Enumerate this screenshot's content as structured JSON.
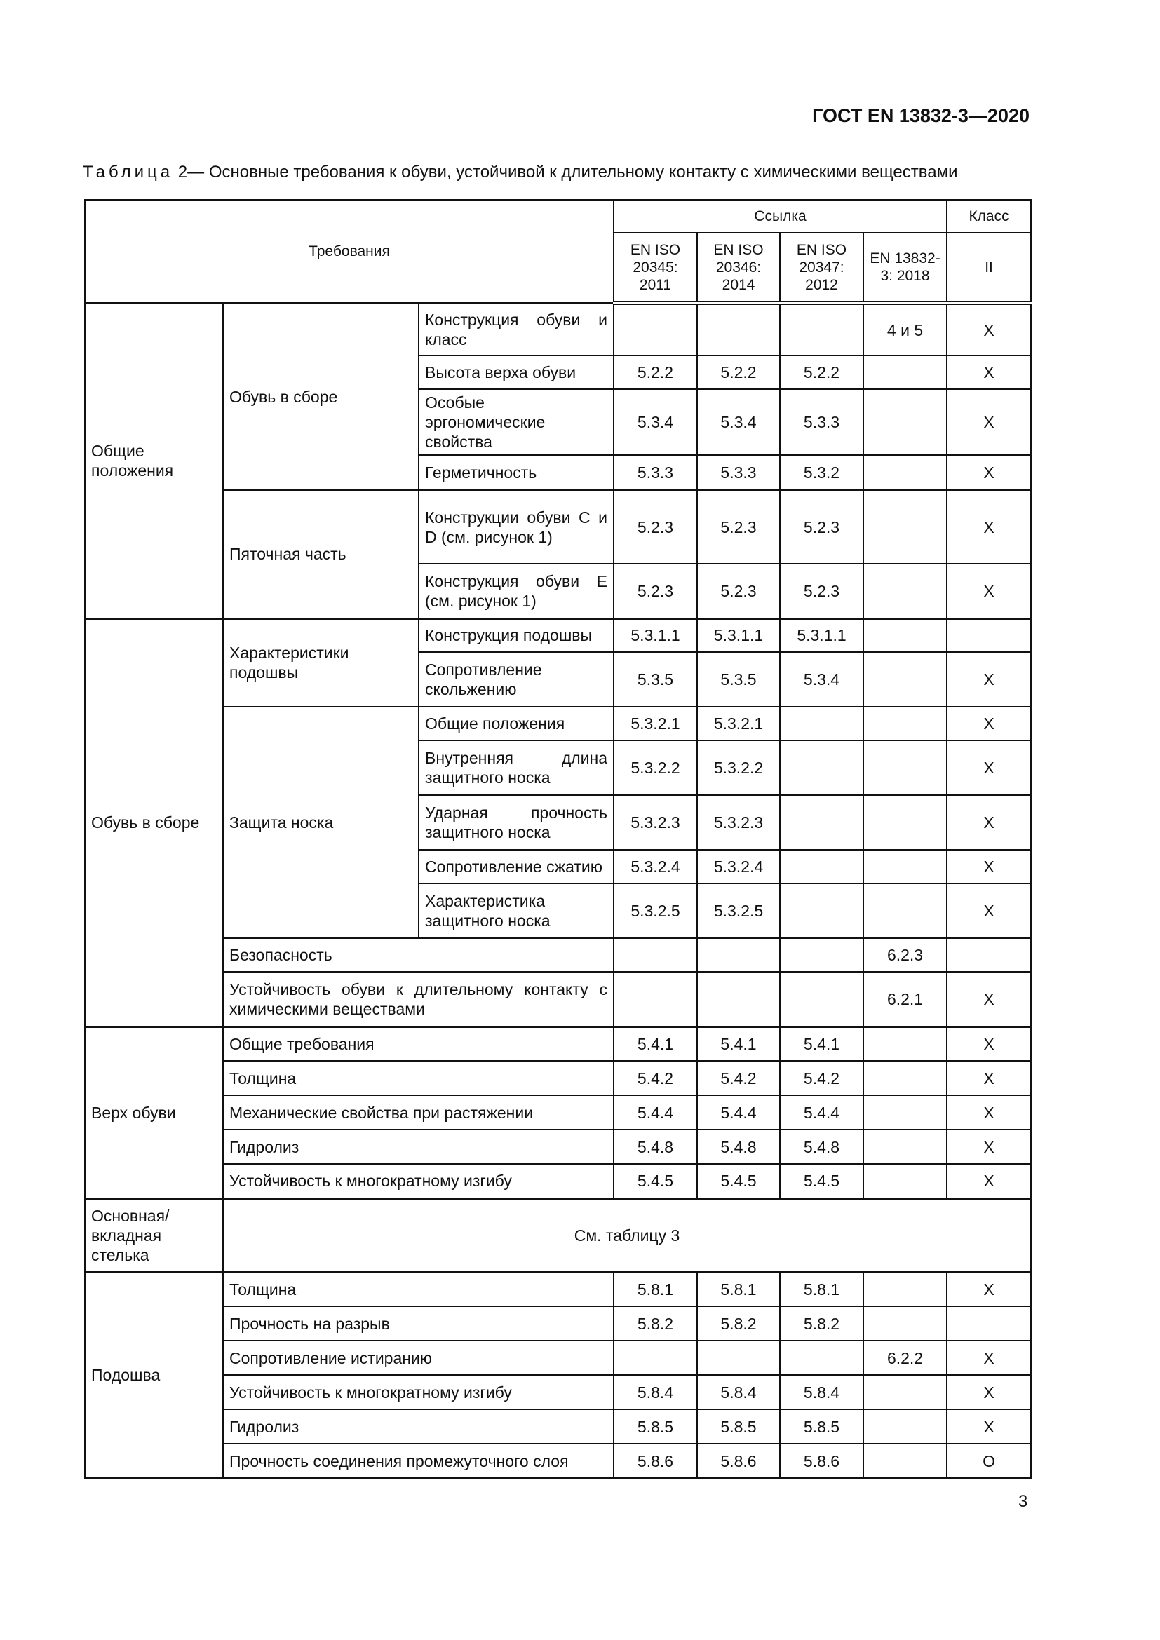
{
  "header": {
    "doc_code": "ГОСТ EN 13832-3—2020"
  },
  "caption": {
    "label": "Таблица",
    "number": "2",
    "separator": "—",
    "title": "Основные требования к обуви, устойчивой к длительному контакту с химическими веществами"
  },
  "table": {
    "col_requirements": "Требования",
    "col_reference": "Ссылка",
    "col_class": "Класс",
    "standards": [
      "EN ISO 20345: 2011",
      "EN ISO 20346: 2014",
      "EN ISO 20347: 2012",
      "EN 13832-3: 2018"
    ],
    "class_value": "II",
    "sections": [
      {
        "label": "Общие положения",
        "rows": [
          {
            "sub": "Обувь в сборе",
            "items": [
              {
                "label": "Конструкция обуви и класс",
                "refs": [
                  "",
                  "",
                  "",
                  "4 и 5"
                ],
                "cls": "X"
              },
              {
                "label": "Высота верха обуви",
                "refs": [
                  "5.2.2",
                  "5.2.2",
                  "5.2.2",
                  ""
                ],
                "cls": "X"
              },
              {
                "label": "Особые эргономические свойства",
                "refs": [
                  "5.3.4",
                  "5.3.4",
                  "5.3.3",
                  ""
                ],
                "cls": "X"
              },
              {
                "label": "Герметичность",
                "refs": [
                  "5.3.3",
                  "5.3.3",
                  "5.3.2",
                  ""
                ],
                "cls": "X"
              }
            ]
          },
          {
            "sub": "Пяточная часть",
            "items": [
              {
                "label": "Конструкции обуви C и D (см. рисунок 1)",
                "refs": [
                  "5.2.3",
                  "5.2.3",
                  "5.2.3",
                  ""
                ],
                "cls": "X"
              },
              {
                "label": "Конструкция обуви E (см. рисунок 1)",
                "refs": [
                  "5.2.3",
                  "5.2.3",
                  "5.2.3",
                  ""
                ],
                "cls": "X"
              }
            ]
          }
        ]
      },
      {
        "label": "Обувь в сборе",
        "rows": [
          {
            "sub": "Характеристики подошвы",
            "items": [
              {
                "label": "Конструкция подошвы",
                "refs": [
                  "5.3.1.1",
                  "5.3.1.1",
                  "5.3.1.1",
                  ""
                ],
                "cls": ""
              },
              {
                "label": "Сопротивление скольжению",
                "refs": [
                  "5.3.5",
                  "5.3.5",
                  "5.3.4",
                  ""
                ],
                "cls": "X"
              }
            ]
          },
          {
            "sub": "Защита носка",
            "items": [
              {
                "label": "Общие положения",
                "refs": [
                  "5.3.2.1",
                  "5.3.2.1",
                  "",
                  ""
                ],
                "cls": "X"
              },
              {
                "label": "Внутренняя длина защитного носка",
                "refs": [
                  "5.3.2.2",
                  "5.3.2.2",
                  "",
                  ""
                ],
                "cls": "X"
              },
              {
                "label": "Ударная прочность защитного носка",
                "refs": [
                  "5.3.2.3",
                  "5.3.2.3",
                  "",
                  ""
                ],
                "cls": "X"
              },
              {
                "label": "Сопротивление сжатию",
                "refs": [
                  "5.3.2.4",
                  "5.3.2.4",
                  "",
                  ""
                ],
                "cls": "X"
              },
              {
                "label": "Характеристика защитного носка",
                "refs": [
                  "5.3.2.5",
                  "5.3.2.5",
                  "",
                  ""
                ],
                "cls": "X"
              }
            ]
          },
          {
            "item": {
              "label": "Безопасность",
              "refs": [
                "",
                "",
                "",
                "6.2.3"
              ],
              "cls": ""
            }
          },
          {
            "item": {
              "label": "Устойчивость обуви к длительному контакту с химическими веществами",
              "refs": [
                "",
                "",
                "",
                "6.2.1"
              ],
              "cls": "X"
            }
          }
        ]
      },
      {
        "label": "Верх обуви",
        "rows": [
          {
            "item": {
              "label": "Общие требования",
              "refs": [
                "5.4.1",
                "5.4.1",
                "5.4.1",
                ""
              ],
              "cls": "X"
            }
          },
          {
            "item": {
              "label": "Толщина",
              "refs": [
                "5.4.2",
                "5.4.2",
                "5.4.2",
                ""
              ],
              "cls": "X"
            }
          },
          {
            "item": {
              "label": "Механические свойства при растяжении",
              "refs": [
                "5.4.4",
                "5.4.4",
                "5.4.4",
                ""
              ],
              "cls": "X"
            }
          },
          {
            "item": {
              "label": "Гидролиз",
              "refs": [
                "5.4.8",
                "5.4.8",
                "5.4.8",
                ""
              ],
              "cls": "X"
            }
          },
          {
            "item": {
              "label": "Устойчивость к многократному изгибу",
              "refs": [
                "5.4.5",
                "5.4.5",
                "5.4.5",
                ""
              ],
              "cls": "X"
            }
          }
        ]
      },
      {
        "label": "Основная/ вкладная стелька",
        "note": "См. таблицу 3"
      },
      {
        "label": "Подошва",
        "rows": [
          {
            "item": {
              "label": "Толщина",
              "refs": [
                "5.8.1",
                "5.8.1",
                "5.8.1",
                ""
              ],
              "cls": "X"
            }
          },
          {
            "item": {
              "label": "Прочность на разрыв",
              "refs": [
                "5.8.2",
                "5.8.2",
                "5.8.2",
                ""
              ],
              "cls": ""
            }
          },
          {
            "item": {
              "label": "Сопротивление истиранию",
              "refs": [
                "",
                "",
                "",
                "6.2.2"
              ],
              "cls": "X"
            }
          },
          {
            "item": {
              "label": "Устойчивость к многократному изгибу",
              "refs": [
                "5.8.4",
                "5.8.4",
                "5.8.4",
                ""
              ],
              "cls": "X"
            }
          },
          {
            "item": {
              "label": "Гидролиз",
              "refs": [
                "5.8.5",
                "5.8.5",
                "5.8.5",
                ""
              ],
              "cls": "X"
            }
          },
          {
            "item": {
              "label": "Прочность соединения промежуточного слоя",
              "refs": [
                "5.8.6",
                "5.8.6",
                "5.8.6",
                ""
              ],
              "cls": "O"
            }
          }
        ]
      }
    ]
  },
  "footer": {
    "page_number": "3"
  }
}
